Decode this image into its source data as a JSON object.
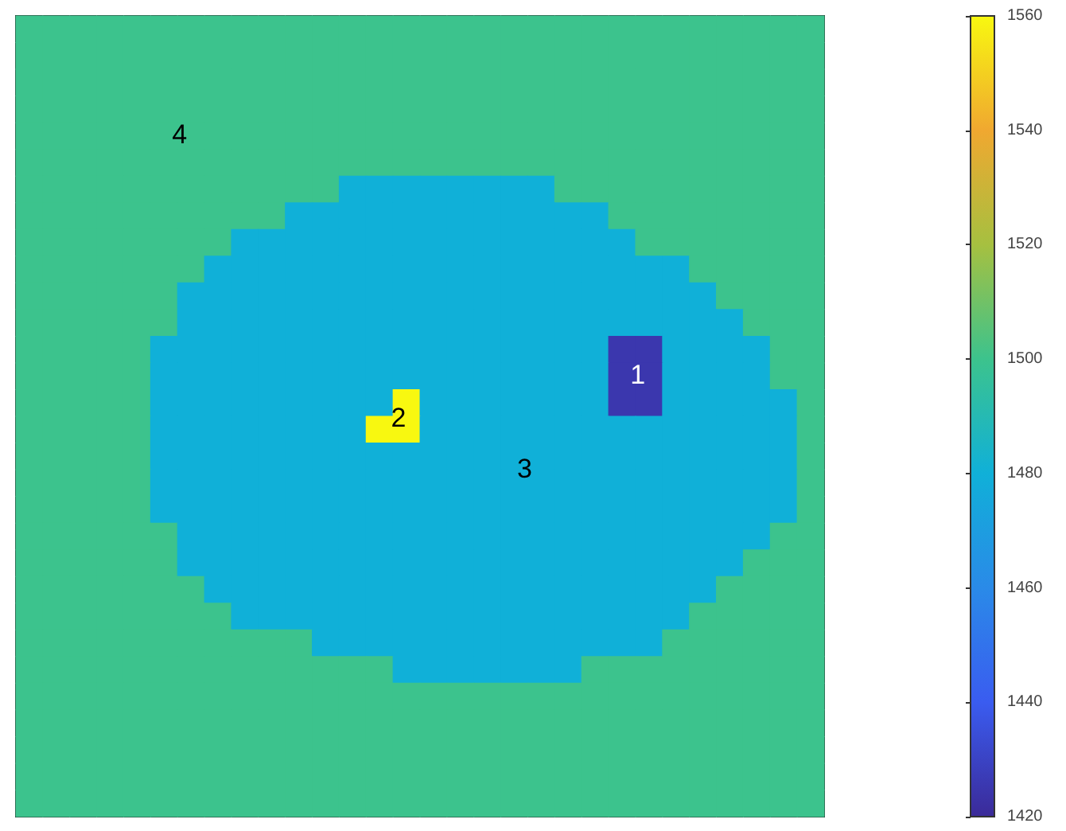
{
  "chart_data": {
    "type": "heatmap",
    "categories": [
      null,
      null,
      null,
      null,
      null,
      null,
      null,
      null,
      null,
      null,
      null,
      null,
      null,
      null,
      null,
      null,
      null,
      null,
      null,
      null,
      null,
      null,
      null,
      null,
      null,
      null,
      null,
      null,
      null,
      null
    ],
    "y_categories": [
      null,
      null,
      null,
      null,
      null,
      null,
      null,
      null,
      null,
      null,
      null,
      null,
      null,
      null,
      null,
      null,
      null,
      null,
      null,
      null,
      null,
      null,
      null,
      null,
      null,
      null,
      null,
      null,
      null,
      null
    ],
    "cells": [
      [
        1500,
        1500,
        1500,
        1500,
        1500,
        1500,
        1500,
        1500,
        1500,
        1500,
        1500,
        1500,
        1500,
        1500,
        1500,
        1500,
        1500,
        1500,
        1500,
        1500,
        1500,
        1500,
        1500,
        1500,
        1500,
        1500,
        1500,
        1500,
        1500,
        1500
      ],
      [
        1500,
        1500,
        1500,
        1500,
        1500,
        1500,
        1500,
        1500,
        1500,
        1500,
        1500,
        1500,
        1500,
        1500,
        1500,
        1500,
        1500,
        1500,
        1500,
        1500,
        1500,
        1500,
        1500,
        1500,
        1500,
        1500,
        1500,
        1500,
        1500,
        1500
      ],
      [
        1500,
        1500,
        1500,
        1500,
        1500,
        1500,
        1500,
        1500,
        1500,
        1500,
        1500,
        1500,
        1500,
        1500,
        1500,
        1500,
        1500,
        1500,
        1500,
        1500,
        1500,
        1500,
        1500,
        1500,
        1500,
        1500,
        1500,
        1500,
        1500,
        1500
      ],
      [
        1500,
        1500,
        1500,
        1500,
        1500,
        1500,
        1500,
        1500,
        1500,
        1500,
        1500,
        1500,
        1500,
        1500,
        1500,
        1500,
        1500,
        1500,
        1500,
        1500,
        1500,
        1500,
        1500,
        1500,
        1500,
        1500,
        1500,
        1500,
        1500,
        1500
      ],
      [
        1500,
        1500,
        1500,
        1500,
        1500,
        1500,
        1500,
        1500,
        1500,
        1500,
        1500,
        1500,
        1500,
        1500,
        1500,
        1500,
        1500,
        1500,
        1500,
        1500,
        1500,
        1500,
        1500,
        1500,
        1500,
        1500,
        1500,
        1500,
        1500,
        1500
      ],
      [
        1500,
        1500,
        1500,
        1500,
        1500,
        1500,
        1500,
        1500,
        1500,
        1500,
        1500,
        1500,
        1500,
        1500,
        1500,
        1500,
        1500,
        1500,
        1500,
        1500,
        1500,
        1500,
        1500,
        1500,
        1500,
        1500,
        1500,
        1500,
        1500,
        1500
      ],
      [
        1500,
        1500,
        1500,
        1500,
        1500,
        1500,
        1500,
        1500,
        1500,
        1500,
        1500,
        1500,
        1480,
        1480,
        1480,
        1480,
        1480,
        1480,
        1480,
        1480,
        1500,
        1500,
        1500,
        1500,
        1500,
        1500,
        1500,
        1500,
        1500,
        1500
      ],
      [
        1500,
        1500,
        1500,
        1500,
        1500,
        1500,
        1500,
        1500,
        1500,
        1500,
        1480,
        1480,
        1480,
        1480,
        1480,
        1480,
        1480,
        1480,
        1480,
        1480,
        1480,
        1480,
        1500,
        1500,
        1500,
        1500,
        1500,
        1500,
        1500,
        1500
      ],
      [
        1500,
        1500,
        1500,
        1500,
        1500,
        1500,
        1500,
        1500,
        1480,
        1480,
        1480,
        1480,
        1480,
        1480,
        1480,
        1480,
        1480,
        1480,
        1480,
        1480,
        1480,
        1480,
        1480,
        1500,
        1500,
        1500,
        1500,
        1500,
        1500,
        1500
      ],
      [
        1500,
        1500,
        1500,
        1500,
        1500,
        1500,
        1500,
        1480,
        1480,
        1480,
        1480,
        1480,
        1480,
        1480,
        1480,
        1480,
        1480,
        1480,
        1480,
        1480,
        1480,
        1480,
        1480,
        1480,
        1480,
        1500,
        1500,
        1500,
        1500,
        1500
      ],
      [
        1500,
        1500,
        1500,
        1500,
        1500,
        1500,
        1480,
        1480,
        1480,
        1480,
        1480,
        1480,
        1480,
        1480,
        1480,
        1480,
        1480,
        1480,
        1480,
        1480,
        1480,
        1480,
        1480,
        1480,
        1480,
        1480,
        1500,
        1500,
        1500,
        1500
      ],
      [
        1500,
        1500,
        1500,
        1500,
        1500,
        1500,
        1480,
        1480,
        1480,
        1480,
        1480,
        1480,
        1480,
        1480,
        1480,
        1480,
        1480,
        1480,
        1480,
        1480,
        1480,
        1480,
        1480,
        1480,
        1480,
        1480,
        1480,
        1500,
        1500,
        1500
      ],
      [
        1500,
        1500,
        1500,
        1500,
        1500,
        1480,
        1480,
        1480,
        1480,
        1480,
        1480,
        1480,
        1480,
        1480,
        1480,
        1480,
        1480,
        1480,
        1480,
        1480,
        1480,
        1480,
        1425,
        1425,
        1480,
        1480,
        1480,
        1480,
        1500,
        1500
      ],
      [
        1500,
        1500,
        1500,
        1500,
        1500,
        1480,
        1480,
        1480,
        1480,
        1480,
        1480,
        1480,
        1480,
        1480,
        1480,
        1480,
        1480,
        1480,
        1480,
        1480,
        1480,
        1480,
        1425,
        1425,
        1480,
        1480,
        1480,
        1480,
        1500,
        1500
      ],
      [
        1500,
        1500,
        1500,
        1500,
        1500,
        1480,
        1480,
        1480,
        1480,
        1480,
        1480,
        1480,
        1480,
        1480,
        1560,
        1480,
        1480,
        1480,
        1480,
        1480,
        1480,
        1480,
        1425,
        1425,
        1480,
        1480,
        1480,
        1480,
        1480,
        1500
      ],
      [
        1500,
        1500,
        1500,
        1500,
        1500,
        1480,
        1480,
        1480,
        1480,
        1480,
        1480,
        1480,
        1480,
        1560,
        1560,
        1480,
        1480,
        1480,
        1480,
        1480,
        1480,
        1480,
        1480,
        1480,
        1480,
        1480,
        1480,
        1480,
        1480,
        1500
      ],
      [
        1500,
        1500,
        1500,
        1500,
        1500,
        1480,
        1480,
        1480,
        1480,
        1480,
        1480,
        1480,
        1480,
        1480,
        1480,
        1480,
        1480,
        1480,
        1480,
        1480,
        1480,
        1480,
        1480,
        1480,
        1480,
        1480,
        1480,
        1480,
        1480,
        1500
      ],
      [
        1500,
        1500,
        1500,
        1500,
        1500,
        1480,
        1480,
        1480,
        1480,
        1480,
        1480,
        1480,
        1480,
        1480,
        1480,
        1480,
        1480,
        1480,
        1480,
        1480,
        1480,
        1480,
        1480,
        1480,
        1480,
        1480,
        1480,
        1480,
        1480,
        1500
      ],
      [
        1500,
        1500,
        1500,
        1500,
        1500,
        1480,
        1480,
        1480,
        1480,
        1480,
        1480,
        1480,
        1480,
        1480,
        1480,
        1480,
        1480,
        1480,
        1480,
        1480,
        1480,
        1480,
        1480,
        1480,
        1480,
        1480,
        1480,
        1480,
        1480,
        1500
      ],
      [
        1500,
        1500,
        1500,
        1500,
        1500,
        1500,
        1480,
        1480,
        1480,
        1480,
        1480,
        1480,
        1480,
        1480,
        1480,
        1480,
        1480,
        1480,
        1480,
        1480,
        1480,
        1480,
        1480,
        1480,
        1480,
        1480,
        1480,
        1480,
        1500,
        1500
      ],
      [
        1500,
        1500,
        1500,
        1500,
        1500,
        1500,
        1480,
        1480,
        1480,
        1480,
        1480,
        1480,
        1480,
        1480,
        1480,
        1480,
        1480,
        1480,
        1480,
        1480,
        1480,
        1480,
        1480,
        1480,
        1480,
        1480,
        1480,
        1500,
        1500,
        1500
      ],
      [
        1500,
        1500,
        1500,
        1500,
        1500,
        1500,
        1500,
        1480,
        1480,
        1480,
        1480,
        1480,
        1480,
        1480,
        1480,
        1480,
        1480,
        1480,
        1480,
        1480,
        1480,
        1480,
        1480,
        1480,
        1480,
        1480,
        1500,
        1500,
        1500,
        1500
      ],
      [
        1500,
        1500,
        1500,
        1500,
        1500,
        1500,
        1500,
        1500,
        1480,
        1480,
        1480,
        1480,
        1480,
        1480,
        1480,
        1480,
        1480,
        1480,
        1480,
        1480,
        1480,
        1480,
        1480,
        1480,
        1480,
        1500,
        1500,
        1500,
        1500,
        1500
      ],
      [
        1500,
        1500,
        1500,
        1500,
        1500,
        1500,
        1500,
        1500,
        1500,
        1500,
        1500,
        1480,
        1480,
        1480,
        1480,
        1480,
        1480,
        1480,
        1480,
        1480,
        1480,
        1480,
        1480,
        1480,
        1500,
        1500,
        1500,
        1500,
        1500,
        1500
      ],
      [
        1500,
        1500,
        1500,
        1500,
        1500,
        1500,
        1500,
        1500,
        1500,
        1500,
        1500,
        1500,
        1500,
        1500,
        1480,
        1480,
        1480,
        1480,
        1480,
        1480,
        1480,
        1500,
        1500,
        1500,
        1500,
        1500,
        1500,
        1500,
        1500,
        1500
      ],
      [
        1500,
        1500,
        1500,
        1500,
        1500,
        1500,
        1500,
        1500,
        1500,
        1500,
        1500,
        1500,
        1500,
        1500,
        1500,
        1500,
        1500,
        1500,
        1500,
        1500,
        1500,
        1500,
        1500,
        1500,
        1500,
        1500,
        1500,
        1500,
        1500,
        1500
      ],
      [
        1500,
        1500,
        1500,
        1500,
        1500,
        1500,
        1500,
        1500,
        1500,
        1500,
        1500,
        1500,
        1500,
        1500,
        1500,
        1500,
        1500,
        1500,
        1500,
        1500,
        1500,
        1500,
        1500,
        1500,
        1500,
        1500,
        1500,
        1500,
        1500,
        1500
      ],
      [
        1500,
        1500,
        1500,
        1500,
        1500,
        1500,
        1500,
        1500,
        1500,
        1500,
        1500,
        1500,
        1500,
        1500,
        1500,
        1500,
        1500,
        1500,
        1500,
        1500,
        1500,
        1500,
        1500,
        1500,
        1500,
        1500,
        1500,
        1500,
        1500,
        1500
      ],
      [
        1500,
        1500,
        1500,
        1500,
        1500,
        1500,
        1500,
        1500,
        1500,
        1500,
        1500,
        1500,
        1500,
        1500,
        1500,
        1500,
        1500,
        1500,
        1500,
        1500,
        1500,
        1500,
        1500,
        1500,
        1500,
        1500,
        1500,
        1500,
        1500,
        1500
      ],
      [
        1500,
        1500,
        1500,
        1500,
        1500,
        1500,
        1500,
        1500,
        1500,
        1500,
        1500,
        1500,
        1500,
        1500,
        1500,
        1500,
        1500,
        1500,
        1500,
        1500,
        1500,
        1500,
        1500,
        1500,
        1500,
        1500,
        1500,
        1500,
        1500,
        1500
      ]
    ],
    "clim": [
      1420,
      1560
    ],
    "cticks": [
      1420,
      1440,
      1460,
      1480,
      1500,
      1520,
      1540,
      1560
    ],
    "annotations": [
      "1",
      "2",
      "3",
      "4"
    ],
    "tick_labels": false
  }
}
